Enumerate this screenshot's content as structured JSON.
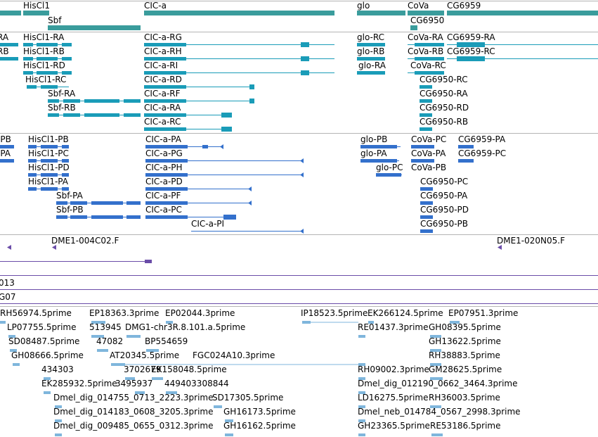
{
  "colors": {
    "gene": "#3a9c9c",
    "mrna": "#1a9cb8",
    "protein": "#3370cc",
    "clone": "#6a4ca8",
    "est": "#7fb6dc",
    "separator": "#b4b4b4"
  },
  "genes": [
    {
      "label": "HisCl1"
    },
    {
      "label": "Sbf"
    },
    {
      "label": "CIC-a"
    },
    {
      "label": "glo"
    },
    {
      "label": "CoVa"
    },
    {
      "label": "CG6959"
    },
    {
      "label": "CG6950"
    }
  ],
  "mrnas": [
    {
      "label": "RA"
    },
    {
      "label": "HisCl1-RA"
    },
    {
      "label": "CIC-a-RG"
    },
    {
      "label": "glo-RC"
    },
    {
      "label": "CoVa-RA"
    },
    {
      "label": "CG6959-RA"
    },
    {
      "label": "RB"
    },
    {
      "label": "HisCl1-RB"
    },
    {
      "label": "CIC-a-RH"
    },
    {
      "label": "glo-RB"
    },
    {
      "label": "CoVa-RB"
    },
    {
      "label": "CG6959-RC"
    },
    {
      "label": "HisCl1-RD"
    },
    {
      "label": "CIC-a-RI"
    },
    {
      "label": "glo-RA"
    },
    {
      "label": "CoVa-RC"
    },
    {
      "label": "HisCl1-RC"
    },
    {
      "label": "CIC-a-RD"
    },
    {
      "label": "CG6950-RC"
    },
    {
      "label": "Sbf-RA"
    },
    {
      "label": "CIC-a-RF"
    },
    {
      "label": "CG6950-RA"
    },
    {
      "label": "Sbf-RB"
    },
    {
      "label": "CIC-a-RA"
    },
    {
      "label": "CG6950-RD"
    },
    {
      "label": "CIC-a-RC"
    },
    {
      "label": "CG6950-RB"
    }
  ],
  "proteins": [
    {
      "label": "-PB"
    },
    {
      "label": "HisCl1-PB"
    },
    {
      "label": "CIC-a-PA"
    },
    {
      "label": "glo-PB"
    },
    {
      "label": "CoVa-PC"
    },
    {
      "label": "CG6959-PA"
    },
    {
      "label": "-PA"
    },
    {
      "label": "HisCl1-PC"
    },
    {
      "label": "CIC-a-PG"
    },
    {
      "label": "glo-PA"
    },
    {
      "label": "CoVa-PA"
    },
    {
      "label": "CG6959-PC"
    },
    {
      "label": "HisCl1-PD"
    },
    {
      "label": "CIC-a-PH"
    },
    {
      "label": "glo-PC"
    },
    {
      "label": "CoVa-PB"
    },
    {
      "label": "HisCl1-PA"
    },
    {
      "label": "CIC-a-PD"
    },
    {
      "label": "CG6950-PC"
    },
    {
      "label": "Sbf-PA"
    },
    {
      "label": "CIC-a-PF"
    },
    {
      "label": "CG6950-PA"
    },
    {
      "label": "Sbf-PB"
    },
    {
      "label": "CIC-a-PC"
    },
    {
      "label": "CG6950-PD"
    },
    {
      "label": "CIC-a-PI"
    },
    {
      "label": "CG6950-PB"
    }
  ],
  "clones": [
    {
      "label": "DME1-004C02.F"
    },
    {
      "label": "DME1-020N05.F"
    }
  ],
  "partial_tracks": [
    {
      "label": "013"
    },
    {
      "label": "G07"
    }
  ],
  "ests": [
    {
      "label": "RH56974.5prime"
    },
    {
      "label": "EP18363.3prime"
    },
    {
      "label": "EP02044.3prime"
    },
    {
      "label": "IP18523.5prime"
    },
    {
      "label": "EK266124.5prime"
    },
    {
      "label": "EP07951.3prime"
    },
    {
      "label": "LP07755.5prime"
    },
    {
      "label": "513945"
    },
    {
      "label": "DMG1-chr3R.8.101.a.5prime"
    },
    {
      "label": "RE01437.3prime"
    },
    {
      "label": "GH08395.5prime"
    },
    {
      "label": "SD08487.5prime"
    },
    {
      "label": "47082"
    },
    {
      "label": "BP554659"
    },
    {
      "label": "GH13622.5prime"
    },
    {
      "label": "GH08666.5prime"
    },
    {
      "label": "AT20345.5prime"
    },
    {
      "label": "FGC024A10.3prime"
    },
    {
      "label": "RH38883.5prime"
    },
    {
      "label": "434303"
    },
    {
      "label": "3702679"
    },
    {
      "label": "EK158048.5prime"
    },
    {
      "label": "RH09002.3prime"
    },
    {
      "label": "GM28625.5prime"
    },
    {
      "label": "EK285932.5prime"
    },
    {
      "label": "3495937"
    },
    {
      "label": "449403308844"
    },
    {
      "label": "Dmel_dig_012190_0662_3464.3prime"
    },
    {
      "label": "Dmel_dig_014755_0713_2223.3prime"
    },
    {
      "label": "SD17305.5prime"
    },
    {
      "label": "LD16275.5prime"
    },
    {
      "label": "RH36003.5prime"
    },
    {
      "label": "Dmel_dig_014183_0608_3205.3prime"
    },
    {
      "label": "GH16173.5prime"
    },
    {
      "label": "Dmel_neb_014784_0567_2998.3prime"
    },
    {
      "label": "Dmel_dig_009485_0655_0312.3prime"
    },
    {
      "label": "GH16162.5prime"
    },
    {
      "label": "GH23365.5prime"
    },
    {
      "label": "RE53186.5prime"
    }
  ]
}
